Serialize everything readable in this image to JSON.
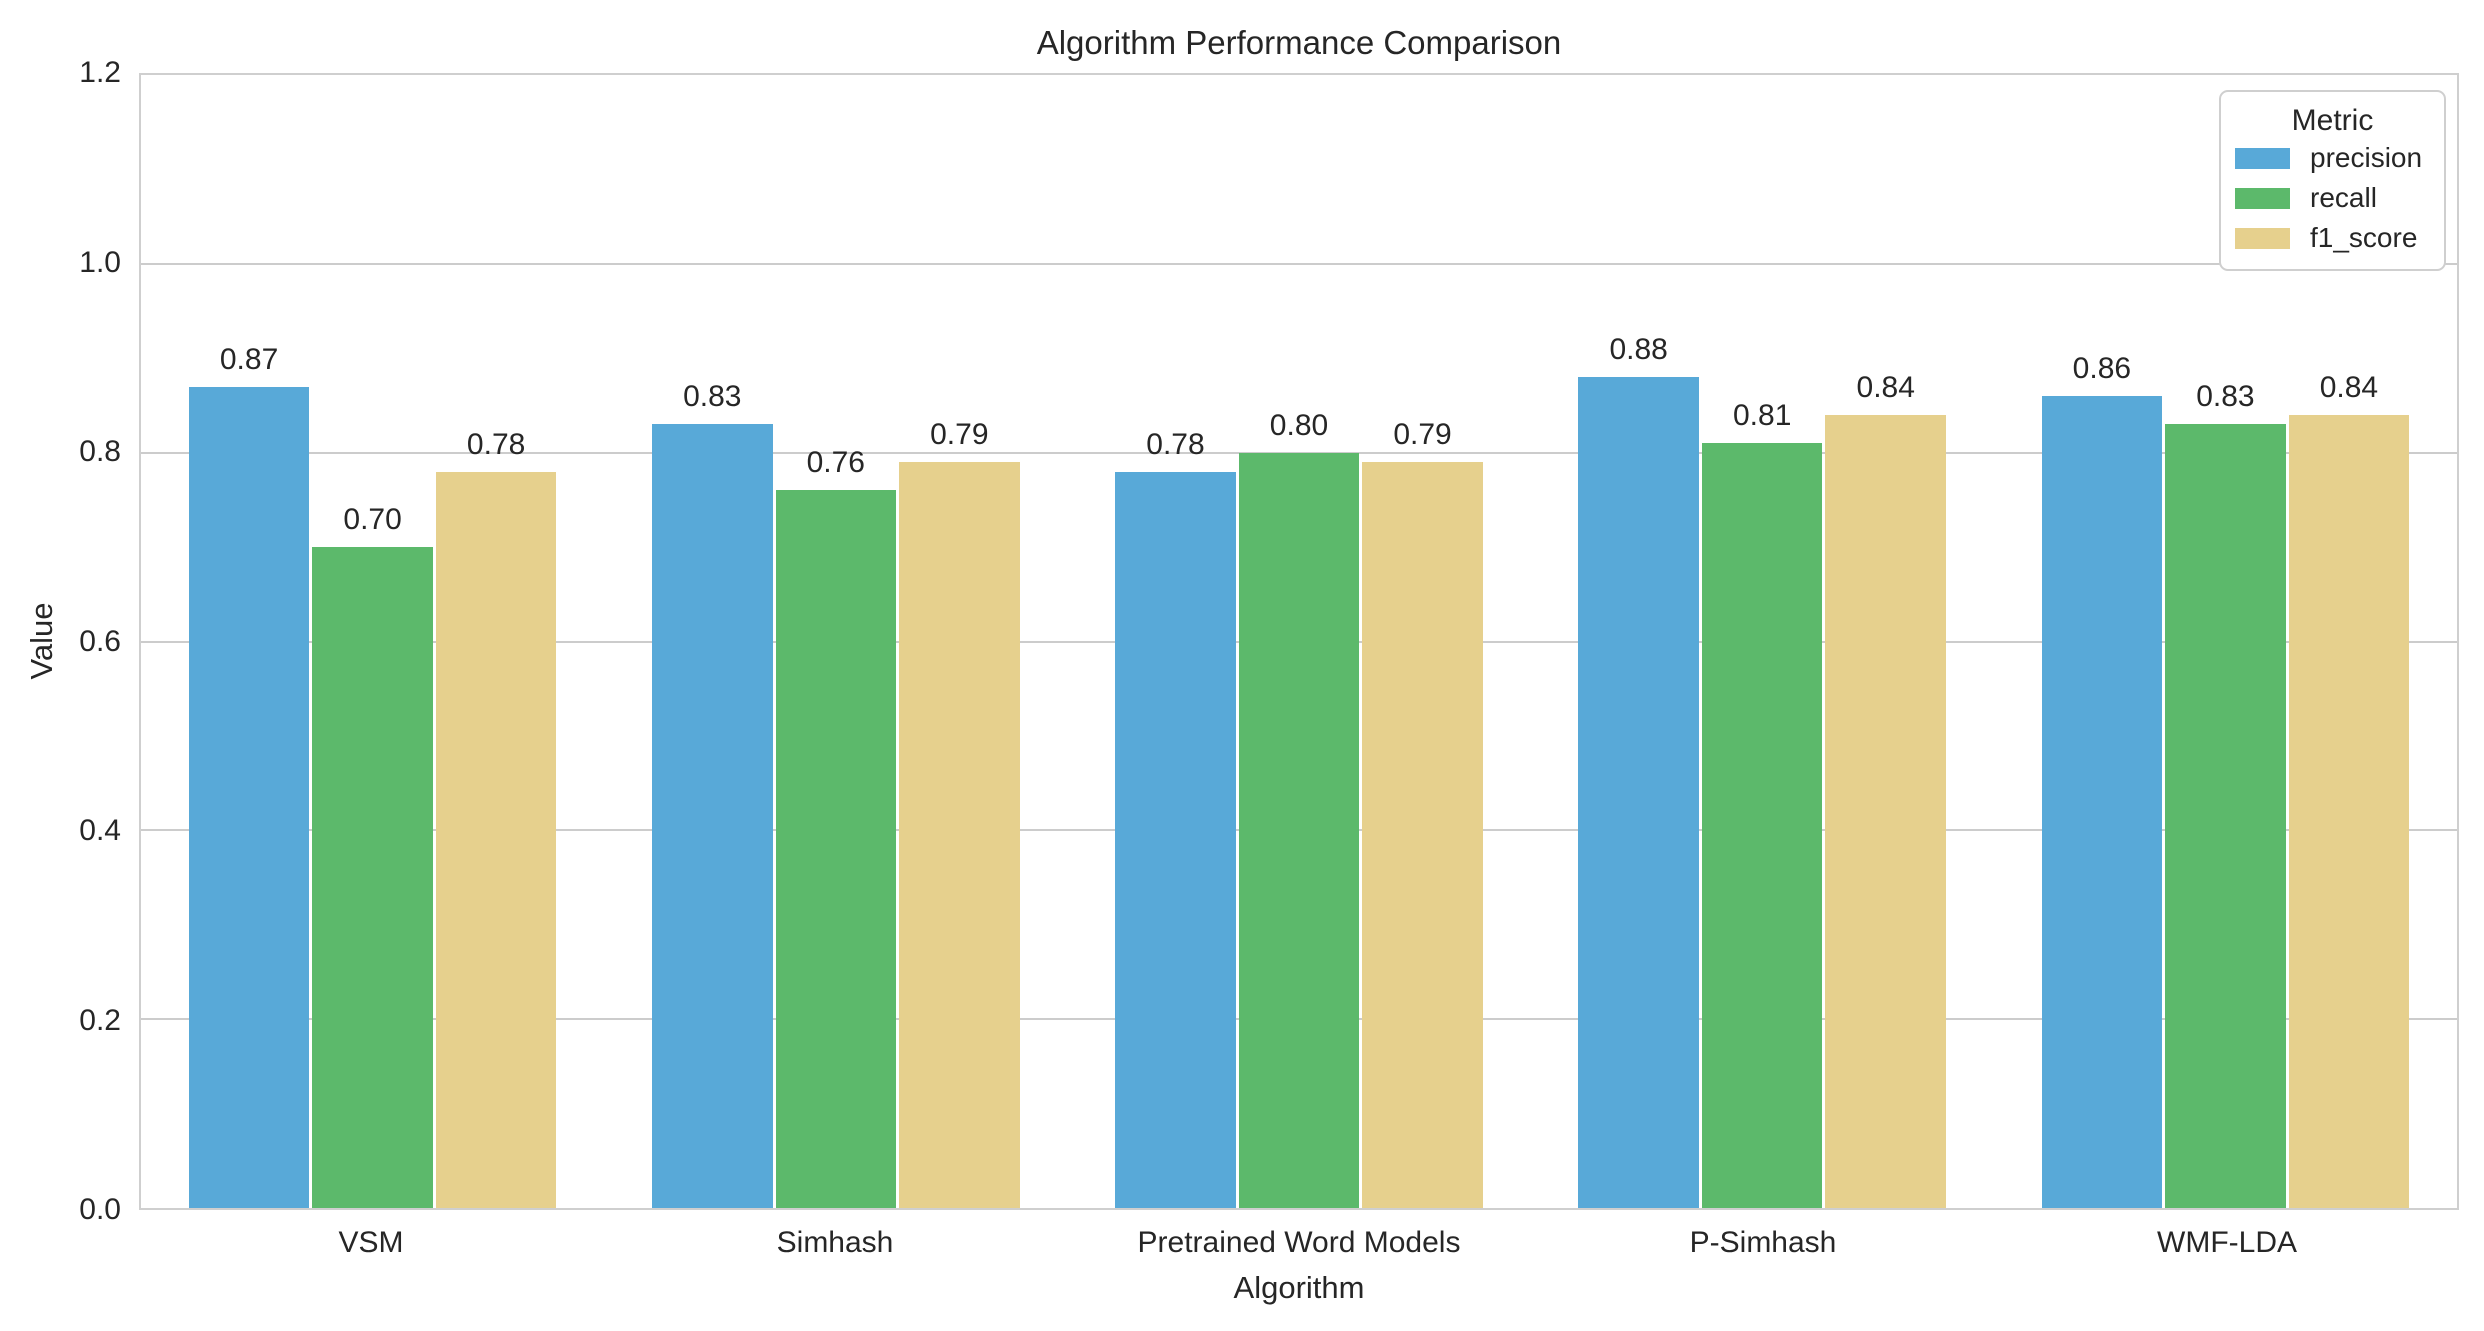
{
  "chart_data": {
    "type": "bar",
    "title": "Algorithm Performance Comparison",
    "xlabel": "Algorithm",
    "ylabel": "Value",
    "categories": [
      "VSM",
      "Simhash",
      "Pretrained Word Models",
      "P-Simhash",
      "WMF-LDA"
    ],
    "series": [
      {
        "name": "precision",
        "color": "#58a9d8",
        "values": [
          0.87,
          0.83,
          0.78,
          0.88,
          0.86
        ],
        "labels": [
          "0.87",
          "0.83",
          "0.78",
          "0.88",
          "0.86"
        ]
      },
      {
        "name": "recall",
        "color": "#5cb96b",
        "values": [
          0.7,
          0.76,
          0.8,
          0.81,
          0.83
        ],
        "labels": [
          "0.70",
          "0.76",
          "0.80",
          "0.81",
          "0.83"
        ]
      },
      {
        "name": "f1_score",
        "color": "#e6d08d",
        "values": [
          0.78,
          0.79,
          0.79,
          0.84,
          0.84
        ],
        "labels": [
          "0.78",
          "0.79",
          "0.79",
          "0.84",
          "0.84"
        ]
      }
    ],
    "ylim": [
      0.0,
      1.2
    ],
    "ytick_labels": [
      "0.0",
      "0.2",
      "0.4",
      "0.6",
      "0.8",
      "1.0",
      "1.2"
    ],
    "grid": true,
    "legend": {
      "title": "Metric",
      "position": "upper right"
    }
  },
  "style": {
    "background": "#ffffff",
    "grid_color": "#cccccc",
    "spine_color": "#cfcfcf",
    "text_color": "#262626"
  }
}
